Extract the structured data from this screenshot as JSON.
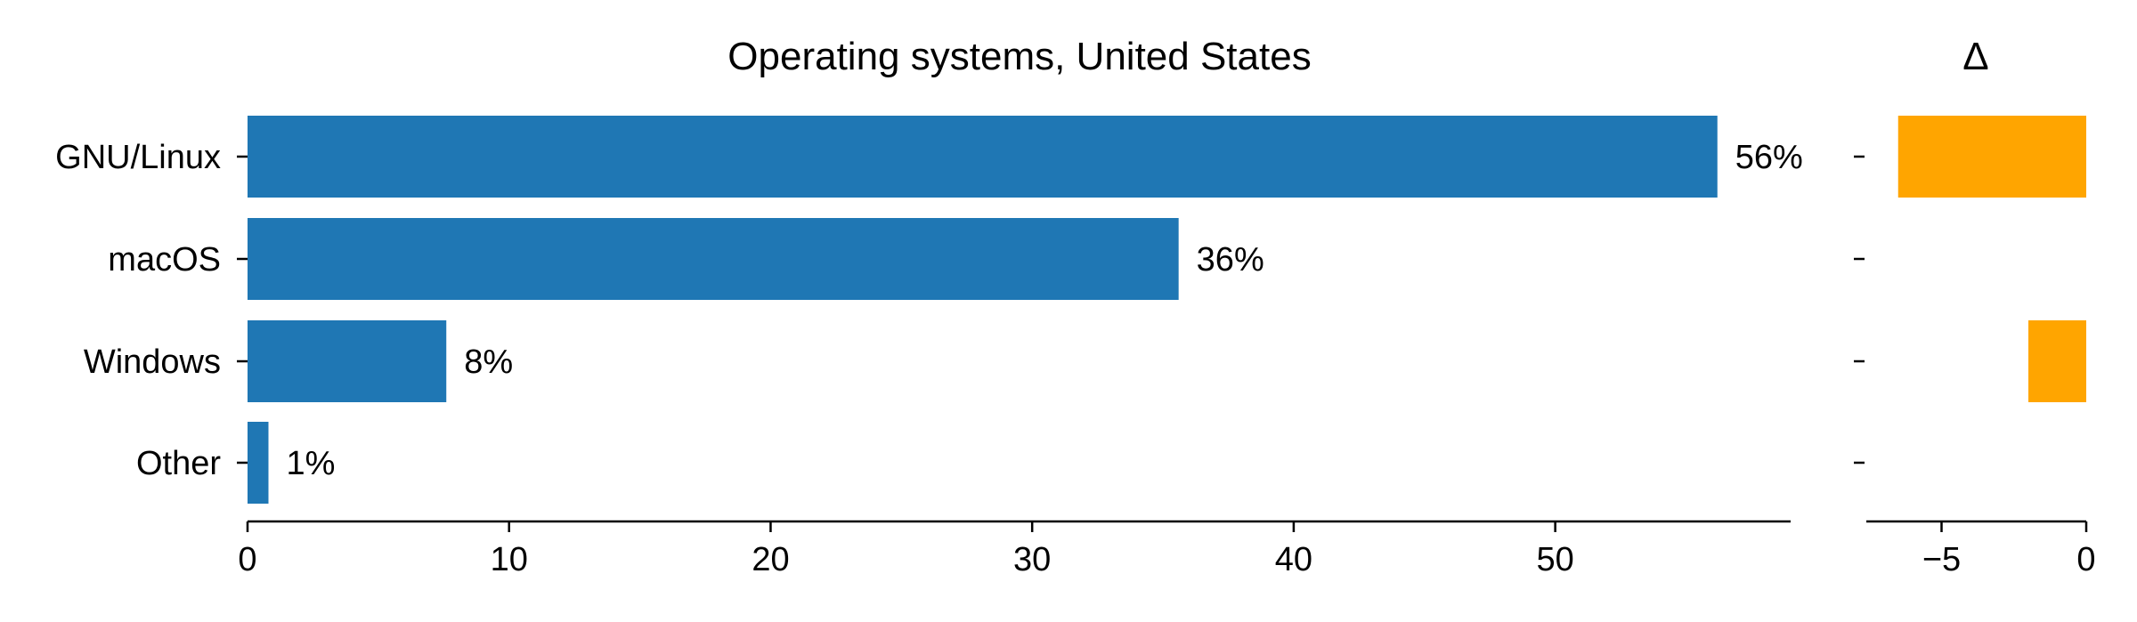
{
  "chart_data": [
    {
      "type": "bar",
      "orientation": "horizontal",
      "title": "Operating systems, United States",
      "categories": [
        "GNU/Linux",
        "macOS",
        "Windows",
        "Other"
      ],
      "values": [
        56.2,
        35.6,
        7.6,
        0.8
      ],
      "value_labels": [
        "56%",
        "36%",
        "8%",
        "1%"
      ],
      "xlim": [
        0,
        59
      ],
      "xticks": [
        0,
        10,
        20,
        30,
        40,
        50
      ],
      "xtick_labels": [
        "0",
        "10",
        "20",
        "30",
        "40",
        "50"
      ],
      "color": "#1f77b4"
    },
    {
      "type": "bar",
      "orientation": "horizontal",
      "title": "Δ",
      "categories": [
        "GNU/Linux",
        "macOS",
        "Windows",
        "Other"
      ],
      "values": [
        -6.5,
        0,
        -2.0,
        0
      ],
      "xlim": [
        -7.6,
        0
      ],
      "xticks": [
        -5,
        0
      ],
      "xtick_labels": [
        "−5",
        "0"
      ],
      "color": "#ffa500"
    }
  ]
}
